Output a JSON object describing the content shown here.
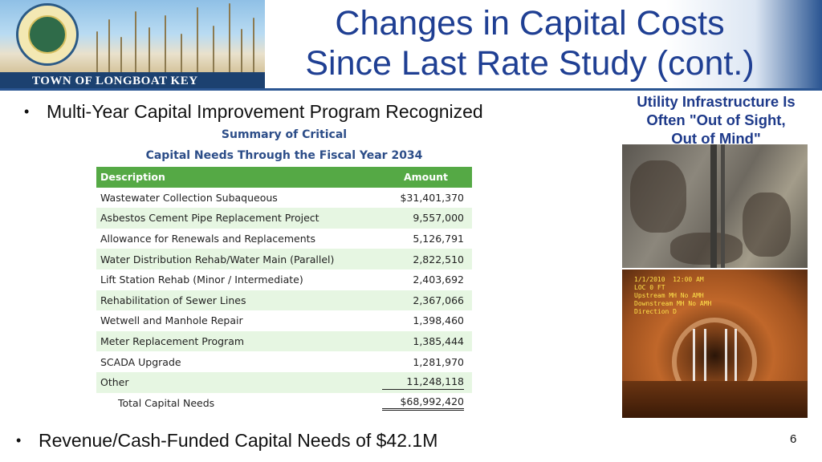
{
  "header": {
    "banner_label": "TOWN OF LONGBOAT KEY",
    "title_line1": "Changes in Capital Costs",
    "title_line2": "Since Last Rate Study (cont.)"
  },
  "bullets": [
    "Multi-Year Capital Improvement Program Recognized",
    "Revenue/Cash-Funded Capital Needs of $42.1M"
  ],
  "table": {
    "caption_line1": "Summary of Critical",
    "caption_line2": "Capital Needs Through the Fiscal Year 2034",
    "headers": {
      "description": "Description",
      "amount": "Amount"
    },
    "rows": [
      {
        "description": "Wastewater Collection Subaqueous",
        "amount": "$31,401,370"
      },
      {
        "description": "Asbestos Cement Pipe Replacement Project",
        "amount": "9,557,000"
      },
      {
        "description": "Allowance for Renewals and Replacements",
        "amount": "5,126,791"
      },
      {
        "description": "Water Distribution Rehab/Water Main (Parallel)",
        "amount": "2,822,510"
      },
      {
        "description": "Lift Station Rehab (Minor /  Intermediate)",
        "amount": "2,403,692"
      },
      {
        "description": "Rehabilitation of Sewer Lines",
        "amount": "2,367,066"
      },
      {
        "description": "Wetwell and Manhole Repair",
        "amount": "1,398,460"
      },
      {
        "description": "Meter Replacement Program",
        "amount": "1,385,444"
      },
      {
        "description": "SCADA Upgrade",
        "amount": "1,281,970"
      },
      {
        "description": "Other",
        "amount": "11,248,118"
      }
    ],
    "total": {
      "description": "Total Capital Needs",
      "amount": "$68,992,420"
    }
  },
  "side": {
    "caption_line1": "Utility Infrastructure Is",
    "caption_line2": "Often \"Out of Sight,",
    "caption_line3": "Out of Mind\""
  },
  "page_number": "6",
  "colors": {
    "title": "#1f3f93",
    "table_header": "#55a945",
    "table_alt_row": "#e6f6e2",
    "caption": "#2c4d88",
    "banner_bar": "#1c4170"
  }
}
